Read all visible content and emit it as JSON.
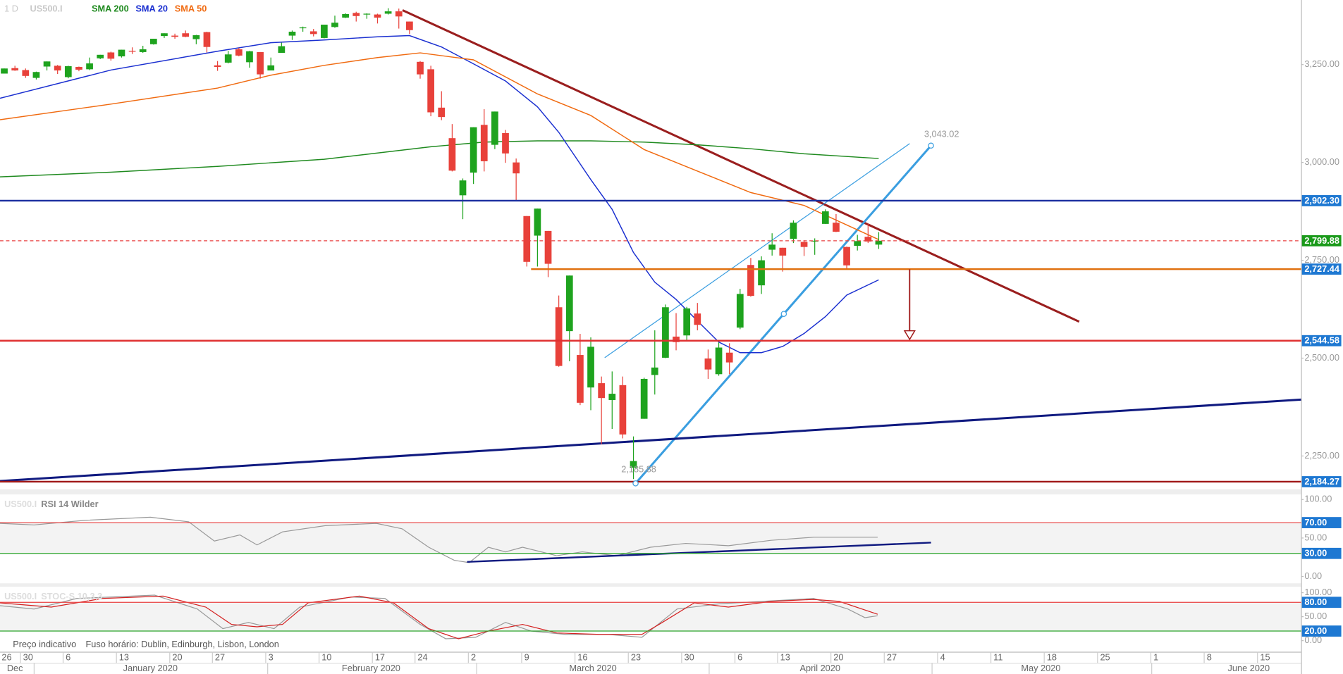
{
  "chart_data": {
    "type": "candlestick",
    "timeframe": "1 D",
    "symbol": "US500.I",
    "xlim": [
      -0.4,
      121.6
    ],
    "xticks": [
      {
        "value": 0,
        "label": "26"
      },
      {
        "value": 2,
        "label": "30"
      },
      {
        "value": 6,
        "label": "6"
      },
      {
        "value": 11,
        "label": "13"
      },
      {
        "value": 16,
        "label": "20"
      },
      {
        "value": 20,
        "label": "27"
      },
      {
        "value": 25,
        "label": "3"
      },
      {
        "value": 30,
        "label": "10"
      },
      {
        "value": 35,
        "label": "17"
      },
      {
        "value": 39,
        "label": "24"
      },
      {
        "value": 44,
        "label": "2"
      },
      {
        "value": 49,
        "label": "9"
      },
      {
        "value": 54,
        "label": "16"
      },
      {
        "value": 59,
        "label": "23"
      },
      {
        "value": 64,
        "label": "30"
      },
      {
        "value": 69,
        "label": "6"
      },
      {
        "value": 73,
        "label": "13"
      },
      {
        "value": 78,
        "label": "20"
      },
      {
        "value": 83,
        "label": "27"
      },
      {
        "value": 88,
        "label": "4"
      },
      {
        "value": 93,
        "label": "11"
      },
      {
        "value": 98,
        "label": "18"
      },
      {
        "value": 103,
        "label": "25"
      },
      {
        "value": 108,
        "label": "1"
      },
      {
        "value": 113,
        "label": "8"
      },
      {
        "value": 118,
        "label": "15"
      }
    ],
    "month_labels": [
      {
        "value": 1.0,
        "label": "Dec"
      },
      {
        "value": 13.7,
        "label": "January 2020"
      },
      {
        "value": 34.4,
        "label": "February 2020"
      },
      {
        "value": 55.2,
        "label": "March 2020"
      },
      {
        "value": 76.5,
        "label": "April 2020"
      },
      {
        "value": 97.2,
        "label": "May 2020"
      },
      {
        "value": 116.7,
        "label": "June 2020"
      }
    ],
    "month_separators": [
      2.8,
      24.7,
      44.3,
      66.1,
      87.0,
      107.6
    ],
    "ylim": [
      2165,
      3415
    ],
    "yticks": [
      {
        "value": 2250,
        "label": "2,250.00"
      },
      {
        "value": 2500,
        "label": "2,500.00"
      },
      {
        "value": 2750,
        "label": "2,750.00"
      },
      {
        "value": 3000,
        "label": "3,000.00"
      },
      {
        "value": 3250,
        "label": "3,250.00"
      }
    ],
    "candles": {
      "up_color": "#1ea31e",
      "down_color": "#e8413a",
      "open": [
        3227,
        3241,
        3236,
        3216,
        3245,
        3247,
        3218,
        3244,
        3238,
        3266,
        3281,
        3271,
        3285,
        3282,
        3302,
        3323,
        3324,
        3330,
        3315,
        3333,
        3248,
        3255,
        3289,
        3256,
        3282,
        3235,
        3280,
        3324,
        3344,
        3335,
        3318,
        3346,
        3370,
        3382,
        3378,
        3378,
        3380,
        3386,
        3360,
        3257,
        3238,
        3140,
        3062,
        2916,
        2974,
        3096,
        3045,
        3075,
        3000,
        2863,
        2813,
        2825,
        2630,
        2569,
        2508,
        2425,
        2436,
        2393,
        2431,
        2220,
        2345,
        2457,
        2501,
        2555,
        2558,
        2614,
        2499,
        2459,
        2514,
        2578,
        2738,
        2686,
        2777,
        2782,
        2805,
        2797,
        2800,
        2843,
        2846,
        2784,
        2787,
        2810,
        2790
      ],
      "high": [
        3240,
        3247,
        3240,
        3232,
        3258,
        3249,
        3247,
        3245,
        3268,
        3275,
        3283,
        3288,
        3294,
        3298,
        3316,
        3330,
        3329,
        3337,
        3326,
        3334,
        3259,
        3285,
        3293,
        3285,
        3282,
        3268,
        3306,
        3337,
        3347,
        3341,
        3352,
        3375,
        3381,
        3385,
        3381,
        3380,
        3394,
        3393,
        3360,
        3259,
        3247,
        3182,
        3098,
        2959,
        3090,
        3136,
        3130,
        3083,
        3010,
        2863,
        2882,
        2825,
        2660,
        2711,
        2562,
        2553,
        2453,
        2466,
        2453,
        2300,
        2450,
        2571,
        2637,
        2615,
        2631,
        2641,
        2522,
        2540,
        2538,
        2677,
        2756,
        2760,
        2819,
        2782,
        2852,
        2801,
        2806,
        2880,
        2868,
        2785,
        2815,
        2844,
        2822
      ],
      "low": [
        3227,
        3234,
        3216,
        3212,
        3235,
        3226,
        3215,
        3233,
        3236,
        3264,
        3260,
        3268,
        3277,
        3280,
        3301,
        3318,
        3316,
        3320,
        3302,
        3281,
        3234,
        3253,
        3271,
        3242,
        3214,
        3235,
        3280,
        3313,
        3334,
        3322,
        3317,
        3344,
        3369,
        3360,
        3367,
        3355,
        3378,
        3342,
        3328,
        3214,
        3118,
        3108,
        2977,
        2855,
        2945,
        2977,
        3034,
        2999,
        2901,
        2734,
        2734,
        2707,
        2478,
        2492,
        2380,
        2367,
        2280,
        2319,
        2295,
        2191,
        2345,
        2407,
        2500,
        2520,
        2545,
        2571,
        2447,
        2455,
        2459,
        2574,
        2657,
        2664,
        2762,
        2721,
        2794,
        2761,
        2764,
        2843,
        2822,
        2727,
        2775,
        2794,
        2779
      ],
      "close": [
        3240,
        3235,
        3221,
        3231,
        3258,
        3235,
        3246,
        3237,
        3253,
        3275,
        3265,
        3288,
        3283,
        3289,
        3316,
        3330,
        3321,
        3321,
        3325,
        3295,
        3244,
        3276,
        3273,
        3284,
        3225,
        3248,
        3297,
        3334,
        3345,
        3328,
        3352,
        3357,
        3379,
        3374,
        3380,
        3370,
        3386,
        3373,
        3338,
        3225,
        3128,
        3116,
        2979,
        2954,
        3090,
        3003,
        3130,
        3023,
        2972,
        2746,
        2882,
        2741,
        2480,
        2711,
        2386,
        2529,
        2398,
        2409,
        2305,
        2237,
        2447,
        2476,
        2630,
        2541,
        2627,
        2585,
        2471,
        2527,
        2489,
        2664,
        2659,
        2750,
        2790,
        2762,
        2846,
        2784,
        2800,
        2875,
        2823,
        2737,
        2799,
        2798,
        2800
      ]
    },
    "series": [
      {
        "name": "SMA 200",
        "color": "#1f8a1f",
        "x": [
          -0.4,
          10,
          20,
          30,
          40,
          45,
          50,
          55,
          60,
          65,
          70,
          75,
          82
        ],
        "values": [
          2963,
          2975,
          2990,
          3008,
          3040,
          3052,
          3055,
          3055,
          3052,
          3045,
          3035,
          3022,
          3010
        ]
      },
      {
        "name": "SMA 20",
        "color": "#1a2fd0",
        "x": [
          -0.4,
          10,
          20,
          25,
          30,
          35,
          38,
          41,
          44,
          47,
          50,
          52,
          55,
          57,
          59,
          61,
          63,
          65,
          67,
          69,
          71,
          73,
          75,
          77,
          79,
          82
        ],
        "values": [
          3164,
          3236,
          3284,
          3306,
          3313,
          3321,
          3324,
          3295,
          3252,
          3208,
          3142,
          3077,
          2956,
          2880,
          2770,
          2694,
          2650,
          2595,
          2541,
          2514,
          2514,
          2530,
          2563,
          2606,
          2661,
          2700
        ]
      },
      {
        "name": "SMA 50",
        "color": "#f06a10",
        "x": [
          -0.4,
          10,
          20,
          25,
          30,
          35,
          39,
          44,
          50,
          55,
          60,
          65,
          70,
          75,
          82
        ],
        "values": [
          3109,
          3149,
          3190,
          3223,
          3248,
          3268,
          3280,
          3262,
          3175,
          3120,
          3033,
          2978,
          2923,
          2890,
          2803
        ]
      }
    ],
    "levels": [
      {
        "value": 2902.3,
        "label": "2,902.30",
        "color": "#1a2ea0",
        "label_color": "#1e78d2",
        "style": "solid",
        "width": 2
      },
      {
        "value": 2799.88,
        "label": "2,799.88",
        "color": "#e84040",
        "label_color": "#1a9a1a",
        "style": "dashed",
        "width": 1
      },
      {
        "value": 2727.44,
        "label": "2,727.44",
        "color": "#e07010",
        "label_color": "#1e78d2",
        "style": "solid",
        "width": 2,
        "from": 49.4
      },
      {
        "value": 2544.58,
        "label": "2,544.58",
        "color": "#e03030",
        "label_color": "#1e78d2",
        "style": "solid",
        "width": 2
      },
      {
        "value": 2184.27,
        "label": "2,184.27",
        "color": "#a01818",
        "label_color": "#1e78d2",
        "style": "solid",
        "width": 2
      }
    ],
    "trendlines": [
      {
        "x": [
          37.35,
          100.8
        ],
        "values": [
          3389,
          2593
        ],
        "color": "#9a1e1e",
        "width": 2.5
      },
      {
        "x": [
          56.3,
          84.9
        ],
        "values": [
          2501,
          3048
        ],
        "color": "#3a9ee0",
        "width": 1
      },
      {
        "x": [
          59.2,
          86.9
        ],
        "values": [
          2180,
          3043
        ],
        "color": "#3a9ee0",
        "width": 2.5
      },
      {
        "x": [
          -0.4,
          121.6
        ],
        "values": [
          2186,
          2394
        ],
        "color": "#101a80",
        "width": 2.5
      }
    ],
    "handles": {
      "x": [
        59.2,
        73.1,
        86.9
      ],
      "values": [
        2180,
        2613,
        3043
      ],
      "color": "#3a9ee0"
    },
    "target_arrow": {
      "x": 84.9,
      "values": [
        2727,
        2548
      ],
      "color": "#a01818"
    },
    "annotations": [
      {
        "label": "3,043.02",
        "x": 86.9,
        "value": 3043.02
      },
      {
        "label": "2,185.88",
        "x": 58.5,
        "value": 2185.88
      }
    ],
    "panels": [
      {
        "symbol": "US500.I",
        "title": "RSI 14 Wilder",
        "ylim": [
          -8.9,
          106.7
        ],
        "yticks": [
          {
            "value": 100,
            "label": "100.00"
          },
          {
            "value": 50,
            "label": "50.00"
          },
          {
            "value": 0,
            "label": "0.00"
          }
        ],
        "band": [
          30,
          70
        ],
        "levels": [
          {
            "value": 70,
            "label": "70.00",
            "color": "#e84040",
            "label_color": "#1e78d2"
          },
          {
            "value": 30,
            "label": "30.00",
            "color": "#2aa52a",
            "label_color": "#1e78d2"
          }
        ],
        "series": [
          {
            "color": "#999999",
            "x": [
              -0.4,
              2.8,
              7.6,
              13.7,
              17.3,
              19.7,
              22.1,
              23.7,
              26.1,
              30.1,
              34.9,
              37.3,
              39.8,
              42.2,
              43.6,
              45.4,
              47.0,
              48.6,
              51.8,
              54.2,
              57.4,
              60.6,
              63.9,
              67.9,
              71.9,
              75.9,
              79.9,
              81.9
            ],
            "values": [
              69,
              67,
              73,
              77,
              71,
              46,
              54,
              41,
              58,
              66,
              69,
              62,
              38,
              21,
              18,
              38,
              32,
              38,
              27,
              32,
              27,
              38,
              43,
              40,
              47,
              51,
              51,
              51
            ]
          }
        ],
        "trendlines": [
          {
            "x": [
              43.4,
              86.9
            ],
            "values": [
              19,
              44
            ],
            "color": "#101a80",
            "width": 2
          }
        ]
      },
      {
        "symbol": "US500.I",
        "title": "STOC-S 10,3,3",
        "ylim": [
          -23.2,
          112.5
        ],
        "yticks": [
          {
            "value": 100,
            "label": "100.00"
          },
          {
            "value": 50,
            "label": "50.00"
          },
          {
            "value": 0,
            "label": "0.00"
          }
        ],
        "band": [
          20,
          80
        ],
        "levels": [
          {
            "value": 80,
            "label": "80.00",
            "color": "#e84040",
            "label_color": "#1e78d2"
          },
          {
            "value": 20,
            "label": "20.00",
            "color": "#2aa52a",
            "label_color": "#1e78d2"
          }
        ],
        "series": [
          {
            "color": "#999999",
            "x": [
              -0.4,
              2.8,
              6.8,
              14.1,
              18.1,
              20.5,
              22.9,
              25.3,
              27.7,
              32.5,
              35.7,
              39.0,
              41.4,
              44.2,
              47.0,
              49.4,
              52.6,
              56.6,
              59.8,
              63.1,
              67.1,
              71.1,
              75.9,
              79.1,
              80.7,
              81.9
            ],
            "values": [
              73,
              66,
              88,
              95,
              66,
              25,
              38,
              25,
              70,
              91,
              88,
              34,
              4,
              7,
              38,
              20,
              13,
              13,
              7,
              66,
              77,
              82,
              88,
              66,
              48,
              52
            ]
          },
          {
            "color": "#d42020",
            "x": [
              -0.4,
              4.4,
              9.2,
              14.9,
              18.9,
              21.3,
              23.7,
              26.1,
              28.5,
              33.3,
              36.5,
              39.8,
              42.6,
              45.4,
              48.6,
              51.8,
              55.8,
              59.8,
              61.4,
              64.7,
              67.9,
              71.9,
              75.9,
              78.3,
              81.9
            ],
            "values": [
              79,
              70,
              88,
              93,
              70,
              34,
              29,
              34,
              79,
              93,
              79,
              25,
              4,
              20,
              34,
              16,
              13,
              13,
              34,
              79,
              70,
              82,
              86,
              82,
              55
            ]
          }
        ],
        "trendlines": []
      }
    ],
    "footer": [
      "Preço indicativo",
      "Fuso horário: Dublin, Edinburgh, Lisbon, London"
    ]
  }
}
